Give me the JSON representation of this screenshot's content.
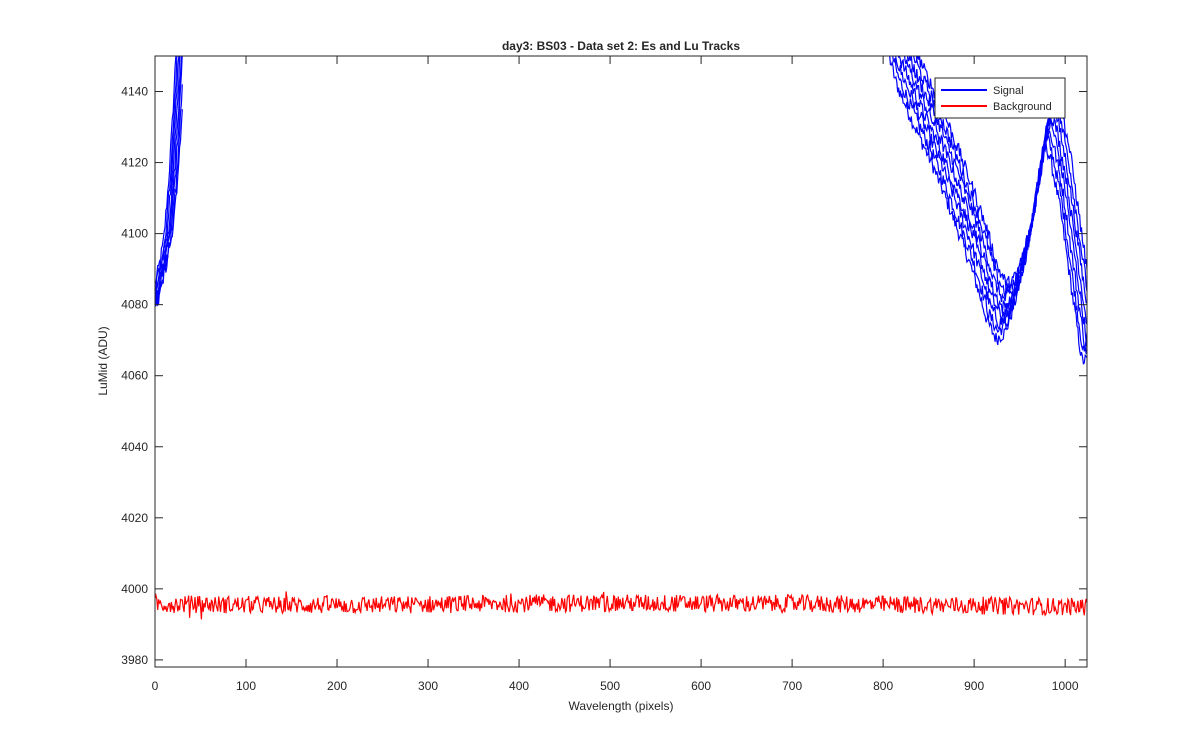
{
  "chart_data": {
    "type": "line",
    "title": "day3: BS03 - Data set 2: Es and Lu Tracks",
    "xlabel": "Wavelength (pixels)",
    "ylabel": "LuMid (ADU)",
    "xlim": [
      0,
      1024
    ],
    "ylim": [
      3978,
      4150
    ],
    "xticks": [
      0,
      100,
      200,
      300,
      400,
      500,
      600,
      700,
      800,
      900,
      1000
    ],
    "yticks": [
      3980,
      4000,
      4020,
      4040,
      4060,
      4080,
      4100,
      4120,
      4140
    ],
    "box": true,
    "grid": false,
    "legend": {
      "position": "top-right",
      "entries": [
        "Signal",
        "Background"
      ]
    },
    "series": [
      {
        "name": "Signal",
        "color": "#0000ff",
        "traces": 8,
        "x": [
          0,
          5,
          10,
          15,
          20,
          25,
          30,
          800,
          820,
          840,
          860,
          880,
          900,
          910,
          920,
          930,
          940,
          950,
          960,
          970,
          975,
          980,
          985,
          990,
          1000,
          1010,
          1020,
          1024
        ],
        "y": [
          4080,
          4087,
          4093,
          4100,
          4115,
          4135,
          4160,
          4170,
          4150,
          4138,
          4127,
          4114,
          4100,
          4092,
          4083,
          4078,
          4080,
          4088,
          4098,
          4113,
          4122,
          4130,
          4132,
          4128,
          4115,
          4097,
          4079,
          4072
        ]
      },
      {
        "name": "Background",
        "color": "#ff0000",
        "x": [
          0,
          100,
          200,
          300,
          400,
          500,
          600,
          700,
          800,
          900,
          1000,
          1024
        ],
        "y": [
          3995.8,
          3995.5,
          3995.4,
          3995.6,
          3995.9,
          3996.0,
          3995.9,
          3995.8,
          3995.6,
          3995.3,
          3995.0,
          3994.9
        ],
        "noise_range": 2.5
      }
    ]
  }
}
